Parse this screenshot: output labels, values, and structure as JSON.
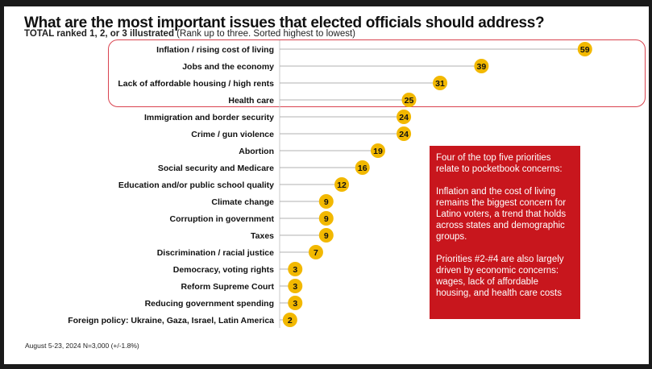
{
  "chart_data": {
    "type": "bar",
    "title": "What are the most important issues that elected officials should address?",
    "subtitle_bold": "TOTAL ranked 1, 2, or 3 illustrated",
    "subtitle_rest": " (Rank up to three. Sorted highest to lowest)",
    "categories": [
      "Inflation / rising cost of living",
      "Jobs and the economy",
      "Lack of affordable housing / high rents",
      "Health care",
      "Immigration and border security",
      "Crime / gun violence",
      "Abortion",
      "Social security and Medicare",
      "Education and/or public school quality",
      "Climate change",
      "Corruption in government",
      "Taxes",
      "Discrimination / racial justice",
      "Democracy, voting rights",
      "Reform Supreme Court",
      "Reducing government spending",
      "Foreign policy: Ukraine, Gaza, Israel, Latin America"
    ],
    "values": [
      59,
      39,
      31,
      25,
      24,
      24,
      19,
      16,
      12,
      9,
      9,
      9,
      7,
      3,
      3,
      3,
      2
    ],
    "highlighted_count": 4,
    "colors": {
      "marker": "#f2b800",
      "highlight_border": "#d9434f",
      "callout": "#c8161d",
      "line": "#b0b0b0"
    }
  },
  "callout": {
    "p1": "Four of the top five priorities relate to pocketbook concerns:",
    "p2": "Inflation and the cost of living remains the biggest concern for Latino voters,  a trend that holds across states and demographic groups.",
    "p3": "Priorities #2-#4 are also largely driven by economic concerns: wages, lack of affordable housing, and health care costs"
  },
  "footer": "August 5-23, 2024   N=3,000 (+/-1.8%)"
}
